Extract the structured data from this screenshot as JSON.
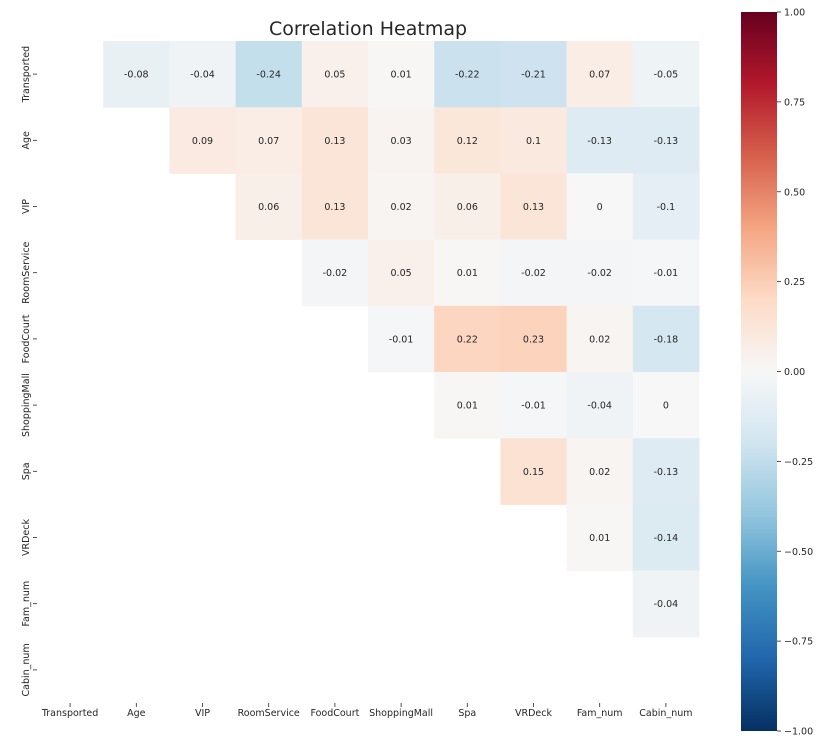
{
  "chart_data": {
    "type": "heatmap",
    "title": "Correlation Heatmap",
    "labels": [
      "Transported",
      "Age",
      "VIP",
      "RoomService",
      "FoodCourt",
      "ShoppingMall",
      "Spa",
      "VRDeck",
      "Fam_num",
      "Cabin_num"
    ],
    "mask": "lower triangle and diagonal hidden",
    "colormap": "RdBu_r",
    "vmin": -1.0,
    "vmax": 1.0,
    "colorbar_ticks": [
      "1.00",
      "0.75",
      "0.50",
      "0.25",
      "0.00",
      "−0.25",
      "−0.50",
      "−0.75",
      "−1.00"
    ],
    "rows": [
      {
        "row": "Transported",
        "values": [
          null,
          -0.08,
          -0.04,
          -0.24,
          0.05,
          0.01,
          -0.22,
          -0.21,
          0.07,
          -0.05
        ]
      },
      {
        "row": "Age",
        "values": [
          null,
          null,
          0.09,
          0.07,
          0.13,
          0.03,
          0.12,
          0.1,
          -0.13,
          -0.13
        ]
      },
      {
        "row": "VIP",
        "values": [
          null,
          null,
          null,
          0.06,
          0.13,
          0.02,
          0.06,
          0.13,
          0,
          -0.1
        ]
      },
      {
        "row": "RoomService",
        "values": [
          null,
          null,
          null,
          null,
          -0.02,
          0.05,
          0.01,
          -0.02,
          -0.02,
          -0.01
        ]
      },
      {
        "row": "FoodCourt",
        "values": [
          null,
          null,
          null,
          null,
          null,
          -0.01,
          0.22,
          0.23,
          0.02,
          -0.18
        ]
      },
      {
        "row": "ShoppingMall",
        "values": [
          null,
          null,
          null,
          null,
          null,
          null,
          0.01,
          -0.01,
          -0.04,
          0
        ]
      },
      {
        "row": "Spa",
        "values": [
          null,
          null,
          null,
          null,
          null,
          null,
          null,
          0.15,
          0.02,
          -0.13
        ]
      },
      {
        "row": "VRDeck",
        "values": [
          null,
          null,
          null,
          null,
          null,
          null,
          null,
          null,
          0.01,
          -0.14
        ]
      },
      {
        "row": "Fam_num",
        "values": [
          null,
          null,
          null,
          null,
          null,
          null,
          null,
          null,
          null,
          -0.04
        ]
      },
      {
        "row": "Cabin_num",
        "values": [
          null,
          null,
          null,
          null,
          null,
          null,
          null,
          null,
          null,
          null
        ]
      }
    ]
  }
}
